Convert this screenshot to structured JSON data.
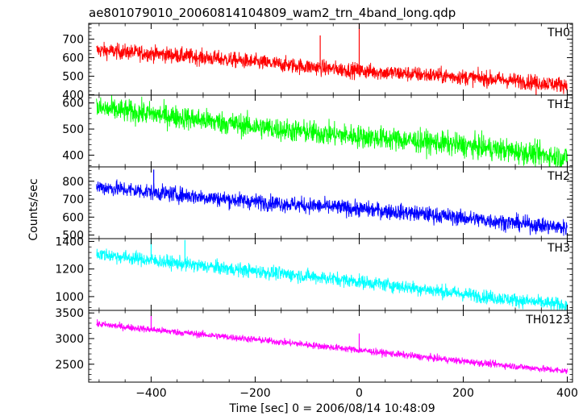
{
  "chart_data": {
    "type": "line",
    "title": "ae801079010_20060814104809_wam2_trn_4band_long.qdp",
    "xlabel": "Time [sec] 0 = 2006/08/14 10:48:09",
    "ylabel": "Counts/sec",
    "xlim": [
      -520,
      410
    ],
    "xticks": [
      -400,
      -200,
      0,
      200,
      400
    ],
    "xtick_labels": [
      "−400",
      "−200",
      "0",
      "200",
      "400"
    ],
    "grid": false,
    "panels": [
      {
        "name": "TH0",
        "color": "#ff0000",
        "ylim": [
          398,
          785
        ],
        "yticks": [
          400,
          500,
          600,
          700
        ],
        "ytick_labels": [
          "400",
          "500",
          "600",
          "700"
        ],
        "trend_start": 640,
        "trend_end": 450,
        "noise": 38,
        "x_start": -505,
        "x_end": 400,
        "spikes": [
          {
            "x": 0,
            "y": 785
          },
          {
            "x": -75,
            "y": 720
          },
          {
            "x": 340,
            "y": 400
          }
        ]
      },
      {
        "name": "TH1",
        "color": "#00ff00",
        "ylim": [
          355,
          630
        ],
        "yticks": [
          400,
          500,
          600
        ],
        "ytick_labels": [
          "400",
          "500",
          "600"
        ],
        "trend_start": 575,
        "trend_end": 392,
        "noise": 40,
        "x_start": -505,
        "x_end": 400,
        "spikes": []
      },
      {
        "name": "TH2",
        "color": "#0000ff",
        "ylim": [
          480,
          880
        ],
        "yticks": [
          500,
          600,
          700,
          800
        ],
        "ytick_labels": [
          "500",
          "600",
          "700",
          "800"
        ],
        "trend_start": 765,
        "trend_end": 545,
        "noise": 40,
        "x_start": -505,
        "x_end": 400,
        "spikes": [
          {
            "x": -395,
            "y": 865
          }
        ]
      },
      {
        "name": "TH3",
        "color": "#00ffff",
        "ylim": [
          900,
          1420
        ],
        "yticks": [
          1000,
          1200,
          1400
        ],
        "ytick_labels": [
          "1000",
          "1200",
          "1400"
        ],
        "trend_start": 1310,
        "trend_end": 940,
        "noise": 45,
        "x_start": -505,
        "x_end": 400,
        "spikes": [
          {
            "x": -400,
            "y": 1415
          },
          {
            "x": -335,
            "y": 1410
          }
        ]
      },
      {
        "name": "TH0123",
        "color": "#ff00ff",
        "ylim": [
          2150,
          3550
        ],
        "yticks": [
          2500,
          3000,
          3500
        ],
        "ytick_labels": [
          "2500",
          "3000",
          "3500"
        ],
        "trend_start": 3290,
        "trend_end": 2360,
        "noise": 60,
        "x_start": -505,
        "x_end": 400,
        "spikes": [
          {
            "x": -400,
            "y": 3450
          },
          {
            "x": 0,
            "y": 3100
          }
        ]
      }
    ]
  }
}
